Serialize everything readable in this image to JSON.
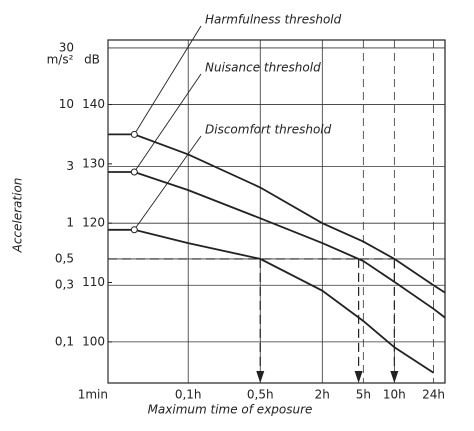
{
  "chart_data": {
    "type": "line",
    "log_x": true,
    "log_y": true,
    "x_label": "Maximum time of exposure",
    "y_label": "Acceleration",
    "y_unit": "m/s²",
    "y2_unit": "dB",
    "xlim": [
      0.016667,
      31
    ],
    "ylim": [
      0.045,
      35
    ],
    "y2lim": [
      93.06,
      150.88
    ],
    "xticks": [
      {
        "value": 0.016667,
        "label": "1min"
      },
      {
        "value": 0.1,
        "label": "0,1h"
      },
      {
        "value": 0.5,
        "label": "0,5h"
      },
      {
        "value": 2,
        "label": "2h"
      },
      {
        "value": 5,
        "label": "5h"
      },
      {
        "value": 10,
        "label": "10h"
      },
      {
        "value": 24,
        "label": "24h"
      }
    ],
    "yticks": [
      {
        "value": 0.1,
        "label": "0,1"
      },
      {
        "value": 0.3,
        "label": "0,3"
      },
      {
        "value": 0.5,
        "label": "0,5"
      },
      1,
      3,
      10,
      30
    ],
    "y2ticks": [
      100,
      110,
      120,
      130,
      140
    ],
    "grid": true,
    "x": [
      0.016667,
      0.03,
      0.1,
      0.5,
      2,
      5,
      10,
      24,
      31
    ],
    "series": [
      {
        "name": "Harmfulness threshold",
        "color": "#222",
        "values": [
          5.6,
          5.6,
          3.8,
          2.0,
          1.0,
          0.7,
          0.5,
          0.3,
          0.26
        ]
      },
      {
        "name": "Nuisance threshold",
        "color": "#222",
        "values": [
          2.7,
          2.7,
          1.9,
          1.1,
          0.68,
          0.48,
          0.32,
          0.19,
          0.16
        ]
      },
      {
        "name": "Discomfort threshold",
        "color": "#222",
        "values": [
          0.88,
          0.88,
          0.68,
          0.5,
          0.27,
          0.15,
          0.09,
          0.055,
          null
        ]
      }
    ],
    "reference": {
      "y": 0.5,
      "x": [
        0.5,
        4.5,
        10
      ]
    }
  }
}
